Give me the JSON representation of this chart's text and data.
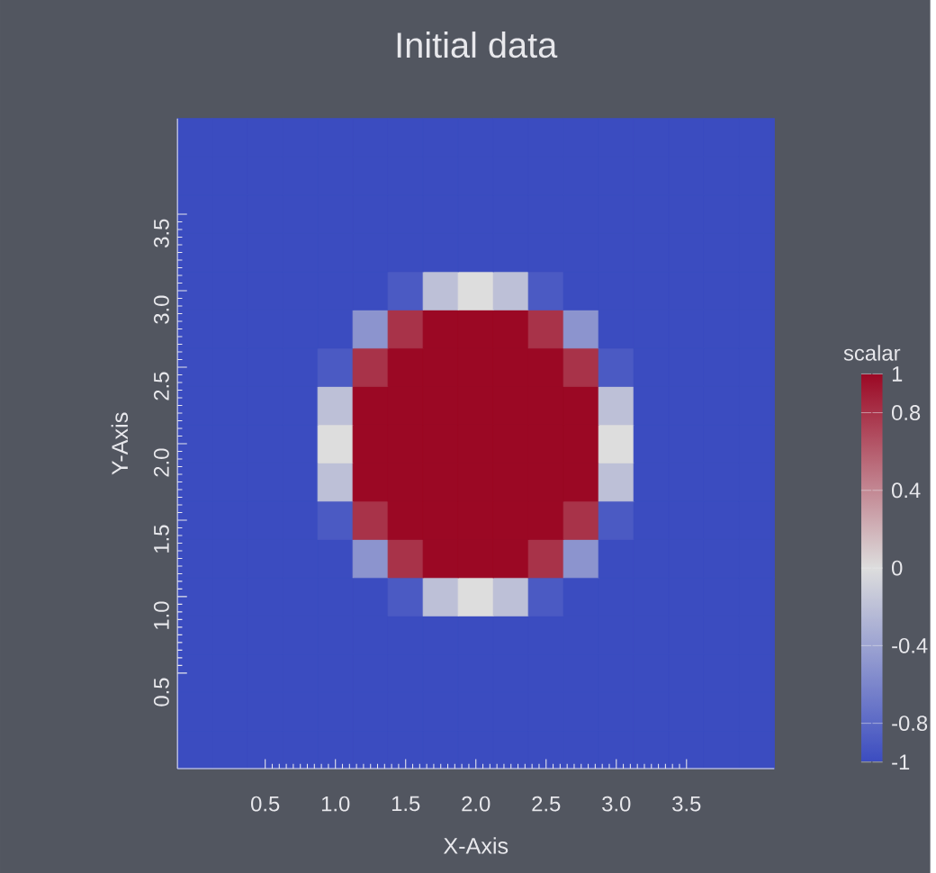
{
  "chart_data": {
    "type": "heatmap",
    "title": "Initial data",
    "xlabel": "X-Axis",
    "ylabel": "Y-Axis",
    "clabel": "scalar",
    "categories": [
      null,
      null,
      "0.5",
      null,
      "1.0",
      null,
      "1.5",
      null,
      "2.0",
      null,
      "2.5",
      null,
      "3.0",
      null,
      "3.5",
      null,
      null
    ],
    "y_categories": [
      null,
      null,
      "3.5",
      null,
      "3.0",
      null,
      "2.5",
      null,
      "2.0",
      null,
      "1.5",
      null,
      "1.0",
      null,
      "0.5",
      null,
      null
    ],
    "clim": [
      -1,
      1
    ],
    "cticks": [
      -1,
      -0.8,
      -0.4,
      0,
      0.4,
      0.8,
      1
    ],
    "cells": [
      [
        -1,
        -1,
        -1,
        -1,
        -1,
        -1,
        -1,
        -1,
        -1,
        -1,
        -1,
        -1,
        -1,
        -1,
        -1,
        -1,
        -1
      ],
      [
        -1,
        -1,
        -1,
        -1,
        -1,
        -1,
        -1,
        -1,
        -1,
        -1,
        -1,
        -1,
        -1,
        -1,
        -1,
        -1,
        -1
      ],
      [
        -1,
        -1,
        -1,
        -1,
        -1,
        -1,
        -1,
        -1,
        -1,
        -1,
        -1,
        -1,
        -1,
        -1,
        -1,
        -1,
        -1
      ],
      [
        -1,
        -1,
        -1,
        -1,
        -1,
        -1,
        -1,
        -1,
        -1,
        -1,
        -1,
        -1,
        -1,
        -1,
        -1,
        -1,
        -1
      ],
      [
        -1,
        -1,
        -1,
        -1,
        -1,
        -1,
        -0.9,
        -0.2,
        0,
        -0.2,
        -0.9,
        -1,
        -1,
        -1,
        -1,
        -1,
        -1
      ],
      [
        -1,
        -1,
        -1,
        -1,
        -1,
        -0.5,
        0.8,
        1,
        1,
        1,
        0.8,
        -0.5,
        -1,
        -1,
        -1,
        -1,
        -1
      ],
      [
        -1,
        -1,
        -1,
        -1,
        -0.9,
        0.8,
        1,
        1,
        1,
        1,
        1,
        0.8,
        -0.9,
        -1,
        -1,
        -1,
        -1
      ],
      [
        -1,
        -1,
        -1,
        -1,
        -0.2,
        1,
        1,
        1,
        1,
        1,
        1,
        1,
        -0.2,
        -1,
        -1,
        -1,
        -1
      ],
      [
        -1,
        -1,
        -1,
        -1,
        0,
        1,
        1,
        1,
        1,
        1,
        1,
        1,
        0,
        -1,
        -1,
        -1,
        -1
      ],
      [
        -1,
        -1,
        -1,
        -1,
        -0.2,
        1,
        1,
        1,
        1,
        1,
        1,
        1,
        -0.2,
        -1,
        -1,
        -1,
        -1
      ],
      [
        -1,
        -1,
        -1,
        -1,
        -0.9,
        0.8,
        1,
        1,
        1,
        1,
        1,
        0.8,
        -0.9,
        -1,
        -1,
        -1,
        -1
      ],
      [
        -1,
        -1,
        -1,
        -1,
        -1,
        -0.5,
        0.8,
        1,
        1,
        1,
        0.8,
        -0.5,
        -1,
        -1,
        -1,
        -1,
        -1
      ],
      [
        -1,
        -1,
        -1,
        -1,
        -1,
        -1,
        -0.9,
        -0.2,
        0,
        -0.2,
        -0.9,
        -1,
        -1,
        -1,
        -1,
        -1,
        -1
      ],
      [
        -1,
        -1,
        -1,
        -1,
        -1,
        -1,
        -1,
        -1,
        -1,
        -1,
        -1,
        -1,
        -1,
        -1,
        -1,
        -1,
        -1
      ],
      [
        -1,
        -1,
        -1,
        -1,
        -1,
        -1,
        -1,
        -1,
        -1,
        -1,
        -1,
        -1,
        -1,
        -1,
        -1,
        -1,
        -1
      ],
      [
        -1,
        -1,
        -1,
        -1,
        -1,
        -1,
        -1,
        -1,
        -1,
        -1,
        -1,
        -1,
        -1,
        -1,
        -1,
        -1,
        -1
      ],
      [
        -1,
        -1,
        -1,
        -1,
        -1,
        -1,
        -1,
        -1,
        -1,
        -1,
        -1,
        -1,
        -1,
        -1,
        -1,
        -1,
        -1
      ]
    ]
  }
}
